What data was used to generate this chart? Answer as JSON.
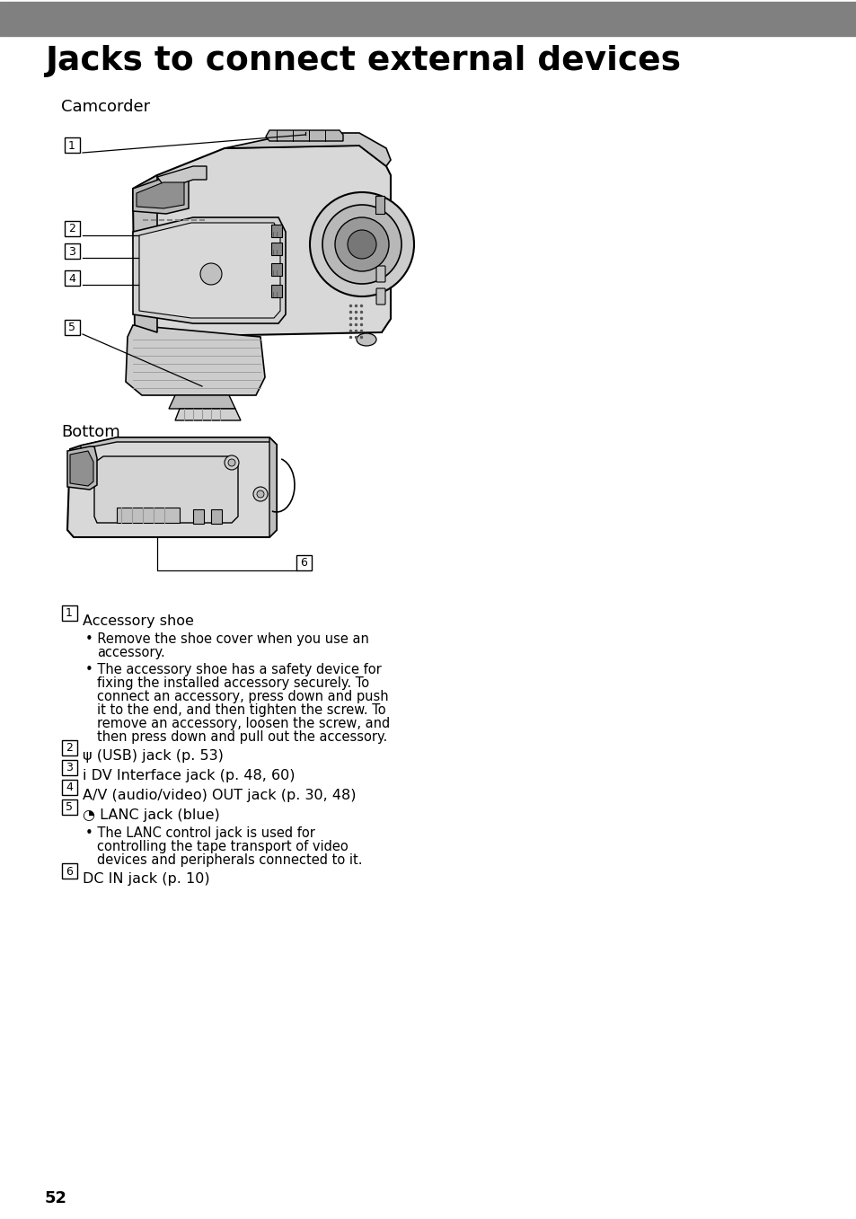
{
  "title": "Jacks to connect external devices",
  "header_bg": "#808080",
  "page_bg": "#ffffff",
  "title_fontsize": 27,
  "section_fontsize": 13,
  "label_fontsize": 11.5,
  "body_fontsize": 10.5,
  "page_number": "52",
  "section1": "Camcorder",
  "section2": "Bottom",
  "cam_fill": "#d8d8d8",
  "cam_edge": "#000000",
  "items": [
    {
      "num": "1",
      "prefix": "",
      "text": "Accessory shoe",
      "bullets": [
        "Remove the shoe cover when you use an\naccessory.",
        "The accessory shoe has a safety device for\nfixing the installed accessory securely. To\nconnect an accessory, press down and push\nit to the end, and then tighten the screw. To\nremove an accessory, loosen the screw, and\nthen press down and pull out the accessory."
      ]
    },
    {
      "num": "2",
      "prefix": "ψ",
      "text": "(USB) jack (p. 53)",
      "bullets": []
    },
    {
      "num": "3",
      "prefix": "i",
      "text": "DV Interface jack (p. 48, 60)",
      "bullets": []
    },
    {
      "num": "4",
      "prefix": "",
      "text": "A/V (audio/video) OUT jack (p. 30, 48)",
      "bullets": []
    },
    {
      "num": "5",
      "prefix": "◔",
      "text": "LANC jack (blue)",
      "bullets": [
        "The LANC control jack is used for\ncontrolling the tape transport of video\ndevices and peripherals connected to it."
      ]
    },
    {
      "num": "6",
      "prefix": "",
      "text": "DC IN jack (p. 10)",
      "bullets": []
    }
  ]
}
